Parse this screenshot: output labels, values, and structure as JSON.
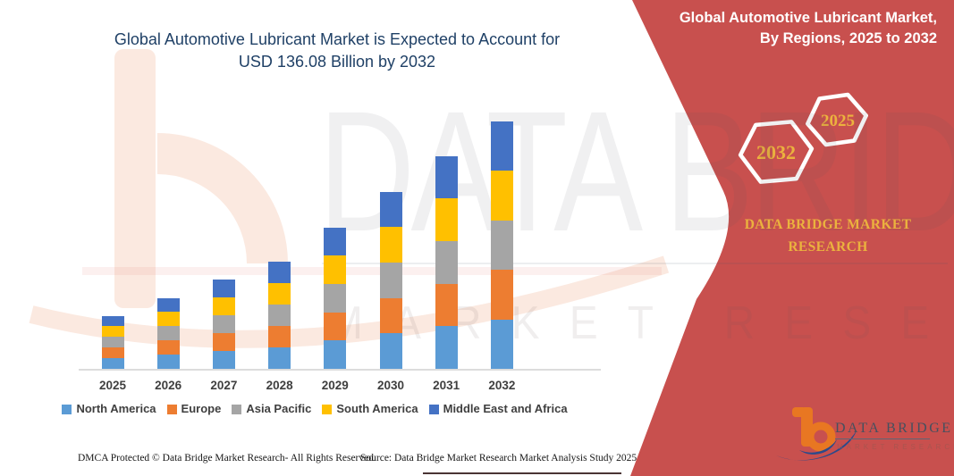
{
  "title": {
    "line1": "Global Automotive Lubricant Market is Expected to Account for",
    "line2": "USD 136.08 Billion by 2032",
    "color": "#1F4066"
  },
  "banner": {
    "bg_color": "#C8504E",
    "heading_line1": "Global Automotive Lubricant Market,",
    "heading_line2": "By Regions, 2025 to 2032",
    "hexagon_large_label": "2032",
    "hexagon_small_label": "2025",
    "gold_color": "#EBB23E",
    "brand_line1": "DATA BRIDGE MARKET",
    "brand_line2": "RESEARCH"
  },
  "watermark": {
    "line1": "DATA BRIDGE",
    "line2": "MARKET RESEARCH"
  },
  "logo": {
    "brand": "DATA BRIDGE",
    "sub": "MARKET RESEARCH",
    "orange": "#E87722",
    "blue": "#2B4A8B"
  },
  "footer": {
    "dmca": "DMCA Protected © Data Bridge Market Research-  All Rights Reserved.",
    "source": "Source: Data Bridge Market Research  Market Analysis Study 2025"
  },
  "chart_data": {
    "type": "bar",
    "stacked": true,
    "title": "Global Automotive Lubricant Market is Expected to Account for USD 136.08 Billion by 2032",
    "unit": "USD Billion",
    "categories": [
      "2025",
      "2026",
      "2027",
      "2028",
      "2029",
      "2030",
      "2031",
      "2032"
    ],
    "series": [
      {
        "name": "North America",
        "color": "#5B9BD5",
        "values": [
          5.84,
          7.8,
          9.82,
          11.82,
          15.56,
          19.44,
          23.36,
          27.22
        ]
      },
      {
        "name": "Europe",
        "color": "#ED7D31",
        "values": [
          5.84,
          7.8,
          9.82,
          11.82,
          15.56,
          19.44,
          23.36,
          27.22
        ]
      },
      {
        "name": "Asia Pacific",
        "color": "#A5A5A5",
        "values": [
          5.84,
          7.8,
          9.82,
          11.82,
          15.56,
          19.44,
          23.36,
          27.22
        ]
      },
      {
        "name": "South America",
        "color": "#FFC000",
        "values": [
          5.84,
          7.8,
          9.82,
          11.82,
          15.56,
          19.44,
          23.36,
          27.22
        ]
      },
      {
        "name": "Middle East and Africa",
        "color": "#4472C4",
        "values": [
          5.84,
          7.8,
          9.82,
          11.82,
          15.56,
          19.44,
          23.36,
          27.22
        ]
      }
    ],
    "totals_estimated": [
      29.2,
      39.0,
      49.1,
      59.1,
      77.8,
      97.2,
      116.8,
      136.08
    ],
    "ylim": [
      0,
      140
    ],
    "y_axis_visible": false,
    "gridlines": false,
    "legend_position": "bottom",
    "axis_label_color": "#3F3F3F",
    "axis_line_color": "#DCDCDC"
  }
}
